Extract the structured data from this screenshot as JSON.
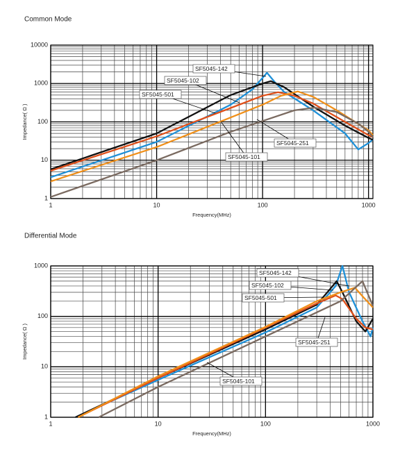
{
  "chart_data": [
    {
      "type": "line",
      "title": "Common Mode",
      "xlabel": "Frequency(MHz)",
      "ylabel": "Impedance( Ω )",
      "xscale": "log",
      "yscale": "log",
      "xlim": [
        1,
        1100
      ],
      "ylim": [
        1,
        10000
      ],
      "xticks": [
        1,
        10,
        100,
        1000
      ],
      "yticks": [
        1,
        10,
        100,
        1000,
        10000
      ],
      "xminor": [
        2,
        3,
        4,
        5,
        6,
        7,
        8,
        9,
        20,
        30,
        40,
        50,
        60,
        70,
        80,
        90,
        200,
        300,
        400,
        500,
        600,
        700,
        800,
        900
      ],
      "yminor": [
        2,
        3,
        4,
        5,
        6,
        7,
        8,
        9,
        20,
        30,
        40,
        50,
        60,
        70,
        80,
        90,
        200,
        300,
        400,
        500,
        600,
        700,
        800,
        900,
        2000,
        3000,
        4000,
        5000,
        6000,
        7000,
        8000,
        9000
      ],
      "series": [
        {
          "name": "SF5045-142",
          "color": "#1e90d8",
          "x": [
            1,
            10,
            50,
            80,
            100,
            110,
            130,
            160,
            300,
            600,
            800,
            1000,
            1100
          ],
          "values": [
            3.6,
            30,
            280,
            700,
            1400,
            1900,
            1100,
            600,
            200,
            50,
            19,
            28,
            35
          ]
        },
        {
          "name": "SF5045-102",
          "color": "#111111",
          "x": [
            1,
            10,
            50,
            100,
            120,
            160,
            300,
            600,
            1000,
            1100
          ],
          "values": [
            5.8,
            50,
            500,
            1000,
            1150,
            800,
            250,
            80,
            38,
            34
          ]
        },
        {
          "name": "SF5045-501",
          "color": "#e0501a",
          "x": [
            1,
            10,
            50,
            100,
            140,
            200,
            300,
            600,
            1000,
            1100
          ],
          "values": [
            5.3,
            42,
            230,
            480,
            590,
            480,
            300,
            100,
            45,
            40
          ]
        },
        {
          "name": "SF5045-251",
          "color": "#f0901a",
          "x": [
            1,
            10,
            50,
            100,
            150,
            215,
            300,
            500,
            1000,
            1100
          ],
          "values": [
            2.8,
            22,
            130,
            280,
            480,
            620,
            450,
            200,
            60,
            45
          ]
        },
        {
          "name": "SF5045-101",
          "color": "#7a6a60",
          "x": [
            1,
            10,
            50,
            100,
            200,
            310,
            500,
            800,
            1000,
            1100
          ],
          "values": [
            1.1,
            10,
            55,
            105,
            200,
            235,
            180,
            90,
            55,
            40
          ]
        }
      ]
    },
    {
      "type": "line",
      "title": "Differential Mode",
      "xlabel": "Frequency(MHz)",
      "ylabel": "Impedance( Ω )",
      "xscale": "log",
      "yscale": "log",
      "xlim": [
        1,
        1000
      ],
      "ylim": [
        1,
        1000
      ],
      "xticks": [
        1,
        10,
        100,
        1000
      ],
      "yticks": [
        1,
        10,
        100,
        1000
      ],
      "xminor": [
        2,
        3,
        4,
        5,
        6,
        7,
        8,
        9,
        20,
        30,
        40,
        50,
        60,
        70,
        80,
        90,
        200,
        300,
        400,
        500,
        600,
        700,
        800,
        900
      ],
      "yminor": [
        2,
        3,
        4,
        5,
        6,
        7,
        8,
        9,
        20,
        30,
        40,
        50,
        60,
        70,
        80,
        90,
        200,
        300,
        400,
        500,
        600,
        700,
        800,
        900
      ],
      "series": [
        {
          "name": "SF5045-142",
          "color": "#1e90d8",
          "x": [
            1.7,
            10,
            100,
            300,
            450,
            520,
            600,
            800,
            950,
            1000
          ],
          "values": [
            1,
            5.5,
            48,
            150,
            400,
            1000,
            300,
            80,
            40,
            60
          ]
        },
        {
          "name": "SF5045-102",
          "color": "#111111",
          "x": [
            1.7,
            10,
            100,
            300,
            400,
            460,
            520,
            700,
            850,
            1000
          ],
          "values": [
            1,
            6,
            55,
            170,
            350,
            500,
            300,
            80,
            50,
            90
          ]
        },
        {
          "name": "SF5045-501",
          "color": "#e0501a",
          "x": [
            1.8,
            10,
            100,
            300,
            450,
            520,
            700,
            850,
            1000
          ],
          "values": [
            1,
            6,
            60,
            180,
            260,
            220,
            90,
            60,
            55
          ]
        },
        {
          "name": "SF5045-251",
          "color": "#f0901a",
          "x": [
            1.8,
            10,
            100,
            300,
            500,
            680,
            800,
            1000
          ],
          "values": [
            1,
            6.5,
            62,
            200,
            300,
            370,
            250,
            150
          ]
        },
        {
          "name": "SF5045-101",
          "color": "#7a6a60",
          "x": [
            2.8,
            10,
            100,
            300,
            500,
            800,
            1000
          ],
          "values": [
            1,
            4,
            40,
            120,
            200,
            500,
            160
          ]
        }
      ]
    }
  ]
}
